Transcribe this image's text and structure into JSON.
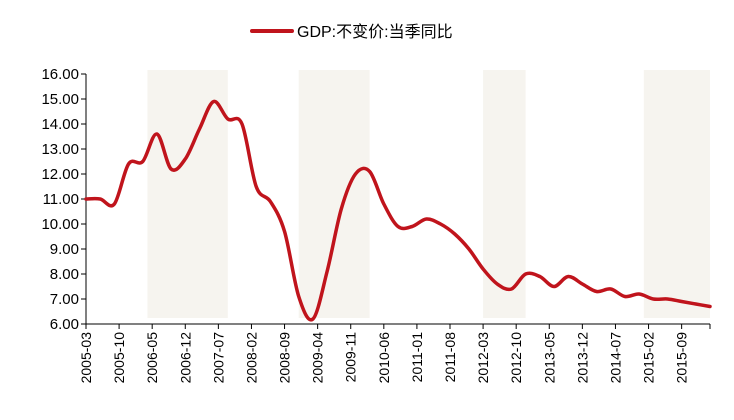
{
  "chart_data": {
    "type": "line",
    "title": "",
    "xlabel": "",
    "ylabel": "",
    "ylim": [
      6.0,
      16.0
    ],
    "y_ticks": [
      "16.00",
      "15.00",
      "14.00",
      "13.00",
      "12.00",
      "11.00",
      "10.00",
      "9.00",
      "8.00",
      "7.00",
      "6.00"
    ],
    "x_tick_labels": [
      "2005-03",
      "2005-10",
      "2006-05",
      "2006-12",
      "2007-07",
      "2008-02",
      "2008-09",
      "2009-04",
      "2009-11",
      "2010-06",
      "2011-01",
      "2011-08",
      "2012-03",
      "2012-10",
      "2013-05",
      "2013-12",
      "2014-07",
      "2015-02",
      "2015-09"
    ],
    "legend": {
      "position": "top-center"
    },
    "colors": {
      "series": "#c0141c",
      "shade": "#f6f4ef",
      "axis": "#000000"
    },
    "shaded_periods": [
      {
        "start": "2006-04",
        "end": "2007-09"
      },
      {
        "start": "2008-12",
        "end": "2010-03"
      },
      {
        "start": "2012-03",
        "end": "2012-12"
      },
      {
        "start": "2015-01",
        "end": "2016-03"
      }
    ],
    "series": [
      {
        "name": "GDP:不变价:当季同比",
        "x": [
          "2005-03",
          "2005-06",
          "2005-09",
          "2005-12",
          "2006-03",
          "2006-06",
          "2006-09",
          "2006-12",
          "2007-03",
          "2007-06",
          "2007-09",
          "2007-12",
          "2008-03",
          "2008-06",
          "2008-09",
          "2008-12",
          "2009-03",
          "2009-06",
          "2009-09",
          "2009-12",
          "2010-03",
          "2010-06",
          "2010-09",
          "2010-12",
          "2011-03",
          "2011-06",
          "2011-09",
          "2011-12",
          "2012-03",
          "2012-06",
          "2012-09",
          "2012-12",
          "2013-03",
          "2013-06",
          "2013-09",
          "2013-12",
          "2014-03",
          "2014-06",
          "2014-09",
          "2014-12",
          "2015-03",
          "2015-06",
          "2015-09",
          "2015-12",
          "2016-03"
        ],
        "values": [
          11.0,
          11.0,
          10.8,
          12.4,
          12.5,
          13.6,
          12.2,
          12.6,
          13.8,
          14.9,
          14.2,
          14.0,
          11.5,
          10.9,
          9.7,
          7.1,
          6.2,
          8.1,
          10.6,
          12.0,
          12.1,
          10.8,
          9.9,
          9.9,
          10.2,
          10.0,
          9.6,
          9.0,
          8.2,
          7.6,
          7.4,
          8.0,
          7.9,
          7.5,
          7.9,
          7.6,
          7.3,
          7.4,
          7.1,
          7.2,
          7.0,
          7.0,
          6.9,
          6.8,
          6.7
        ]
      }
    ]
  }
}
